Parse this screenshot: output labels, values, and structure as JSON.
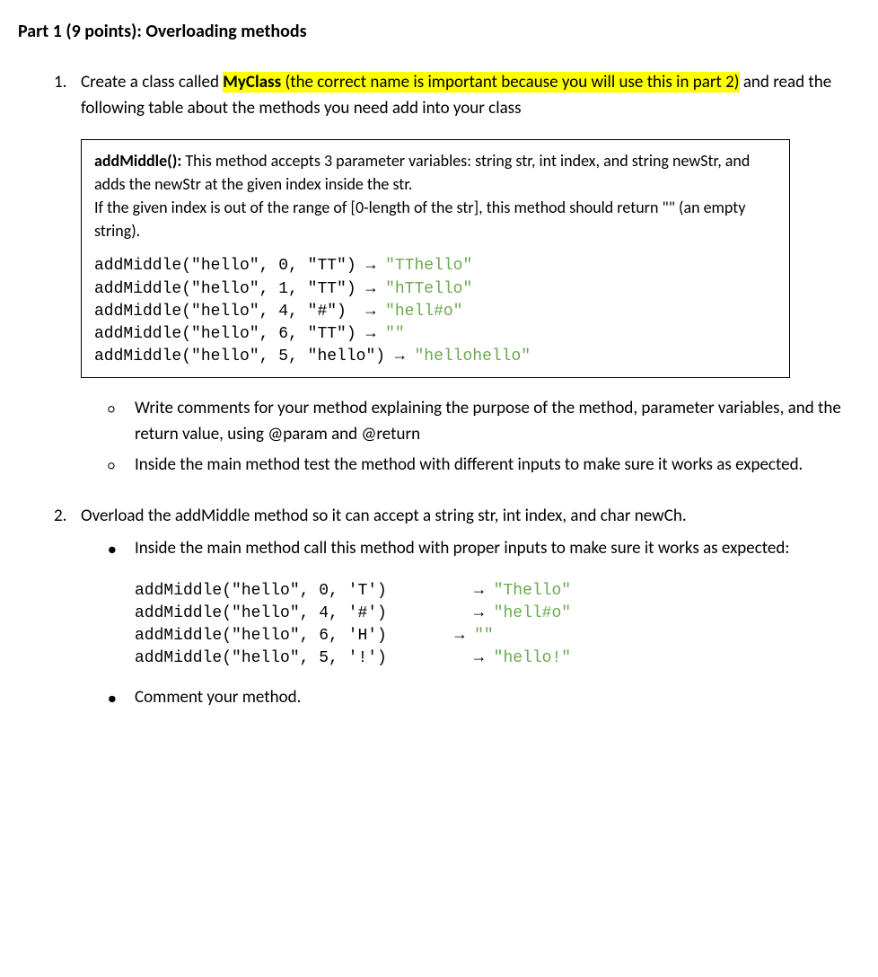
{
  "heading": "Part 1 (9 points): Overloading methods",
  "item1": {
    "number": "1.",
    "text_before": "Create a class called ",
    "highlight_bold": "MyClass",
    "highlight_rest1": " (the correct name is important because you will use ",
    "highlight_rest2": "this in part 2)",
    "text_after": " and read the following table about the methods you need add into your class"
  },
  "codebox": {
    "desc_bold": "addMiddle():",
    "desc_rest": " This method accepts 3 parameter variables: string str, int index, and string newStr, and adds the newStr at the given index inside the str.\nIf the given index is out of the range of [0-length of the str], this method should return \"\" (an empty string).",
    "lines": [
      {
        "call": "addMiddle(\"hello\", 0, \"TT\") → ",
        "result": "\"TThello\""
      },
      {
        "call": "addMiddle(\"hello\", 1, \"TT\") → ",
        "result": "\"hTTello\""
      },
      {
        "call": "addMiddle(\"hello\", 4, \"#\")  → ",
        "result": "\"hell#o\""
      },
      {
        "call": "addMiddle(\"hello\", 6, \"TT\") → ",
        "result": "\"\""
      },
      {
        "call": "addMiddle(\"hello\", 5, \"hello\") → ",
        "result": "\"hellohello\""
      }
    ]
  },
  "sub1a": "Write comments for your method explaining the purpose of the method, parameter variables, and the return value, using @param and @return",
  "sub1b": "Inside the main method test the method with different inputs to make sure it works as expected.",
  "item2": {
    "number": "2.",
    "text": "Overload the addMiddle method so it can accept a string str, int index, and char newCh."
  },
  "sub2a": "Inside the main method call this method with proper inputs to make sure it works as expected:",
  "codeblock2": {
    "lines": [
      {
        "call": "addMiddle(\"hello\", 0, 'T')         → ",
        "result": "\"Thello\""
      },
      {
        "call": "addMiddle(\"hello\", 4, '#')         → ",
        "result": "\"hell#o\""
      },
      {
        "call": "addMiddle(\"hello\", 6, 'H')       → ",
        "result": "\"\""
      },
      {
        "call": "addMiddle(\"hello\", 5, '!')         → ",
        "result": "\"hello!\""
      }
    ]
  },
  "sub2b": "Comment your method.",
  "colors": {
    "highlight": "#ffff00",
    "result": "#6aa84f",
    "text": "#000000",
    "background": "#ffffff"
  }
}
